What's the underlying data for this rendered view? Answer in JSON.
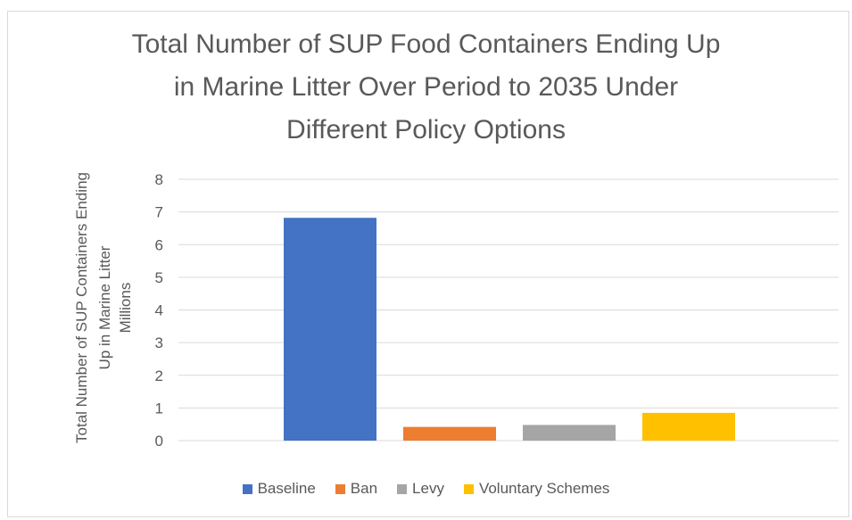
{
  "chart_data": {
    "type": "bar",
    "title": "Total Number of SUP Food Containers Ending Up\nin Marine Litter Over Period to 2035 Under\nDifferent Policy Options",
    "ylabel": "Total Number of SUP Containers Ending\nUp in Marine Litter",
    "yunits": "Millions",
    "xlabel": "",
    "ylim": [
      0,
      8
    ],
    "yticks": [
      0,
      1,
      2,
      3,
      4,
      5,
      6,
      7,
      8
    ],
    "grid": true,
    "legend_position": "bottom",
    "series": [
      {
        "name": "Baseline",
        "value": 6.82,
        "color": "#4472C4"
      },
      {
        "name": "Ban",
        "value": 0.42,
        "color": "#ED7D31"
      },
      {
        "name": "Levy",
        "value": 0.48,
        "color": "#A5A5A5"
      },
      {
        "name": "Voluntary Schemes",
        "value": 0.85,
        "color": "#FFC000"
      }
    ]
  }
}
